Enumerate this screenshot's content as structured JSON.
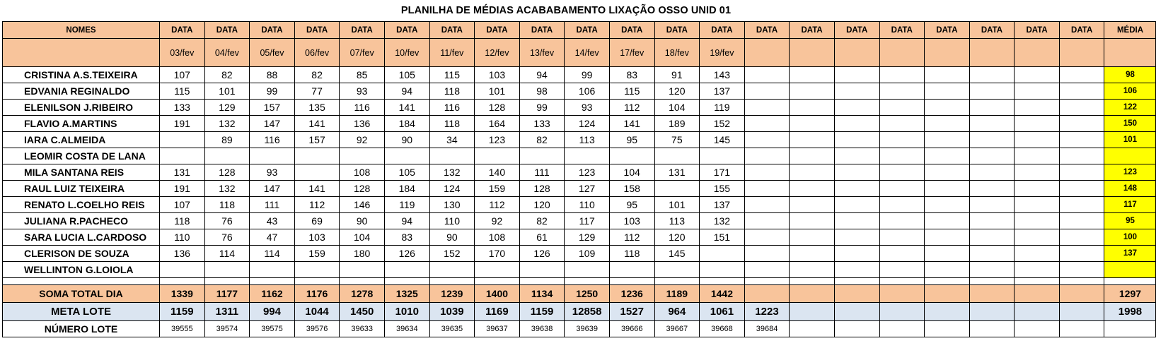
{
  "title": "PLANILHA DE MÉDIAS ACABABAMENTO LIXAÇÃO OSSO UNID 01",
  "header": {
    "names_label": "NOMES",
    "data_label": "DATA",
    "media_label": "MÉDIA",
    "dates": [
      "03/fev",
      "04/fev",
      "05/fev",
      "06/fev",
      "07/fev",
      "10/fev",
      "11/fev",
      "12/fev",
      "13/fev",
      "14/fev",
      "17/fev",
      "18/fev",
      "19/fev",
      "",
      "",
      "",
      "",
      "",
      "",
      "",
      ""
    ]
  },
  "rows": [
    {
      "name": "CRISTINA A.S.TEIXEIRA",
      "values": [
        "107",
        "82",
        "88",
        "82",
        "85",
        "105",
        "115",
        "103",
        "94",
        "99",
        "83",
        "91",
        "143",
        "",
        "",
        "",
        "",
        "",
        "",
        "",
        ""
      ],
      "media": "98"
    },
    {
      "name": "EDVANIA REGINALDO",
      "values": [
        "115",
        "101",
        "99",
        "77",
        "93",
        "94",
        "118",
        "101",
        "98",
        "106",
        "115",
        "120",
        "137",
        "",
        "",
        "",
        "",
        "",
        "",
        "",
        ""
      ],
      "media": "106"
    },
    {
      "name": "ELENILSON J.RIBEIRO",
      "values": [
        "133",
        "129",
        "157",
        "135",
        "116",
        "141",
        "116",
        "128",
        "99",
        "93",
        "112",
        "104",
        "119",
        "",
        "",
        "",
        "",
        "",
        "",
        "",
        ""
      ],
      "media": "122"
    },
    {
      "name": "FLAVIO A.MARTINS",
      "values": [
        "191",
        "132",
        "147",
        "141",
        "136",
        "184",
        "118",
        "164",
        "133",
        "124",
        "141",
        "189",
        "152",
        "",
        "",
        "",
        "",
        "",
        "",
        "",
        ""
      ],
      "media": "150"
    },
    {
      "name": "IARA C.ALMEIDA",
      "values": [
        "",
        "89",
        "116",
        "157",
        "92",
        "90",
        "34",
        "123",
        "82",
        "113",
        "95",
        "75",
        "145",
        "",
        "",
        "",
        "",
        "",
        "",
        "",
        ""
      ],
      "media": "101"
    },
    {
      "name": "LEOMIR COSTA DE LANA",
      "values": [
        "",
        "",
        "",
        "",
        "",
        "",
        "",
        "",
        "",
        "",
        "",
        "",
        "",
        "",
        "",
        "",
        "",
        "",
        "",
        "",
        ""
      ],
      "media": ""
    },
    {
      "name": "MILA SANTANA REIS",
      "values": [
        "131",
        "128",
        "93",
        "",
        "108",
        "105",
        "132",
        "140",
        "111",
        "123",
        "104",
        "131",
        "171",
        "",
        "",
        "",
        "",
        "",
        "",
        "",
        ""
      ],
      "media": "123"
    },
    {
      "name": "RAUL LUIZ TEIXEIRA",
      "values": [
        "191",
        "132",
        "147",
        "141",
        "128",
        "184",
        "124",
        "159",
        "128",
        "127",
        "158",
        "",
        "155",
        "",
        "",
        "",
        "",
        "",
        "",
        "",
        ""
      ],
      "media": "148"
    },
    {
      "name": "RENATO L.COELHO REIS",
      "values": [
        "107",
        "118",
        "111",
        "112",
        "146",
        "119",
        "130",
        "112",
        "120",
        "110",
        "95",
        "101",
        "137",
        "",
        "",
        "",
        "",
        "",
        "",
        "",
        ""
      ],
      "media": "117"
    },
    {
      "name": "JULIANA R.PACHECO",
      "values": [
        "118",
        "76",
        "43",
        "69",
        "90",
        "94",
        "110",
        "92",
        "82",
        "117",
        "103",
        "113",
        "132",
        "",
        "",
        "",
        "",
        "",
        "",
        "",
        ""
      ],
      "media": "95"
    },
    {
      "name": "SARA LUCIA L.CARDOSO",
      "values": [
        "110",
        "76",
        "47",
        "103",
        "104",
        "83",
        "90",
        "108",
        "61",
        "129",
        "112",
        "120",
        "151",
        "",
        "",
        "",
        "",
        "",
        "",
        "",
        ""
      ],
      "media": "100"
    },
    {
      "name": "CLERISON DE SOUZA",
      "values": [
        "136",
        "114",
        "114",
        "159",
        "180",
        "126",
        "152",
        "170",
        "126",
        "109",
        "118",
        "145",
        "",
        "",
        "",
        "",
        "",
        "",
        "",
        "",
        ""
      ],
      "media": "137"
    },
    {
      "name": "WELLINTON G.LOIOLA",
      "values": [
        "",
        "",
        "",
        "",
        "",
        "",
        "",
        "",
        "",
        "",
        "",
        "",
        "",
        "",
        "",
        "",
        "",
        "",
        "",
        "",
        ""
      ],
      "media": ""
    }
  ],
  "soma": {
    "label": "SOMA TOTAL DIA",
    "values": [
      "1339",
      "1177",
      "1162",
      "1176",
      "1278",
      "1325",
      "1239",
      "1400",
      "1134",
      "1250",
      "1236",
      "1189",
      "1442",
      "",
      "",
      "",
      "",
      "",
      "",
      "",
      ""
    ],
    "media": "1297"
  },
  "meta": {
    "label": "META LOTE",
    "values": [
      "1159",
      "1311",
      "994",
      "1044",
      "1450",
      "1010",
      "1039",
      "1169",
      "1159",
      "12858",
      "1527",
      "964",
      "1061",
      "1223",
      "",
      "",
      "",
      "",
      "",
      "",
      ""
    ],
    "media": "1998"
  },
  "lote": {
    "label": "NÚMERO LOTE",
    "values": [
      "39555",
      "39574",
      "39575",
      "39576",
      "39633",
      "39634",
      "39635",
      "39637",
      "39638",
      "39639",
      "39666",
      "39667",
      "39668",
      "39684",
      "",
      "",
      "",
      "",
      "",
      "",
      ""
    ],
    "media": ""
  }
}
